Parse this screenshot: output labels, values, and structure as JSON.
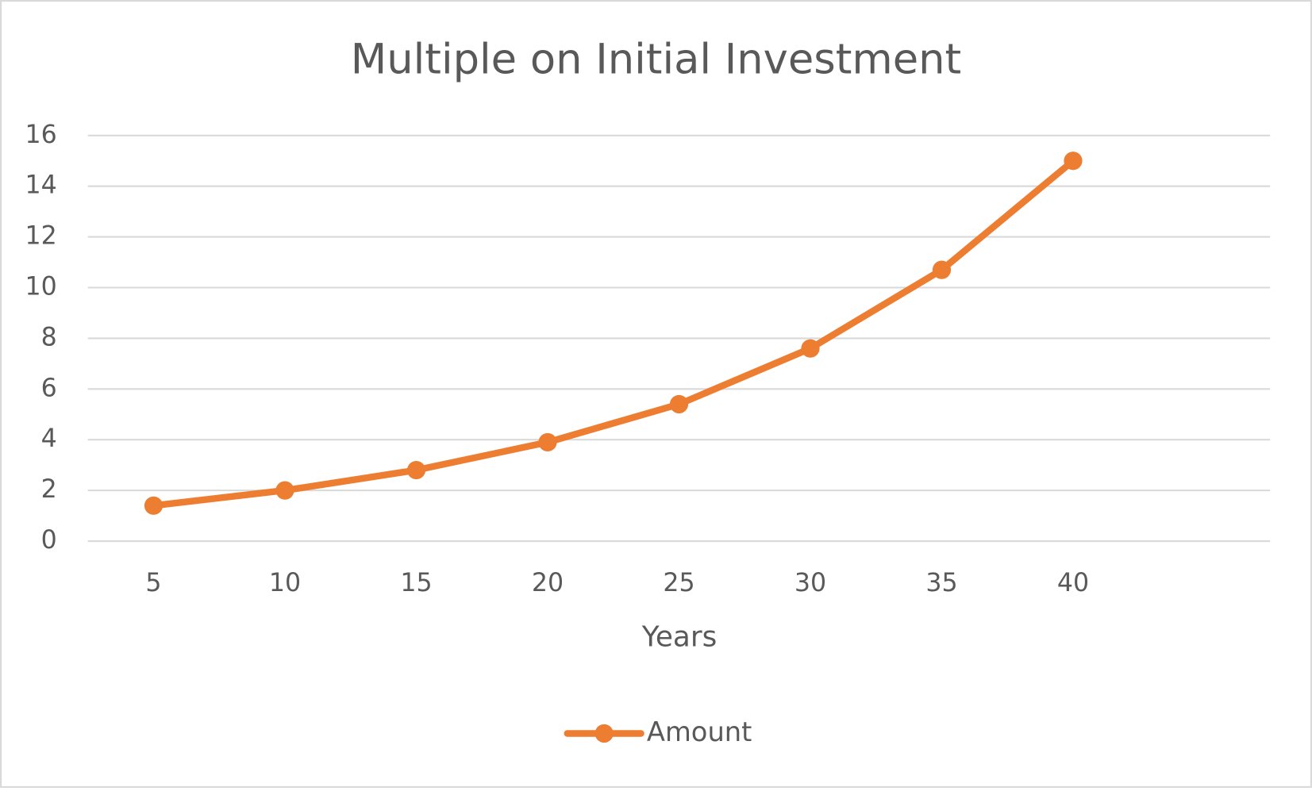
{
  "chart_data": {
    "type": "line",
    "title": "Multiple on Initial Investment",
    "x_label": "Years",
    "categories": [
      "5",
      "10",
      "15",
      "20",
      "25",
      "30",
      "35",
      "40",
      null
    ],
    "series": [
      {
        "name": "Amount",
        "color": "#ed7d31",
        "values": [
          1.4,
          2.0,
          2.8,
          3.9,
          5.4,
          7.6,
          10.7,
          15.0,
          null
        ]
      }
    ],
    "ylim": [
      0,
      16
    ],
    "yticks": [
      0,
      2,
      4,
      6,
      8,
      10,
      12,
      14,
      16
    ],
    "grid": true,
    "legend": "bottom"
  }
}
